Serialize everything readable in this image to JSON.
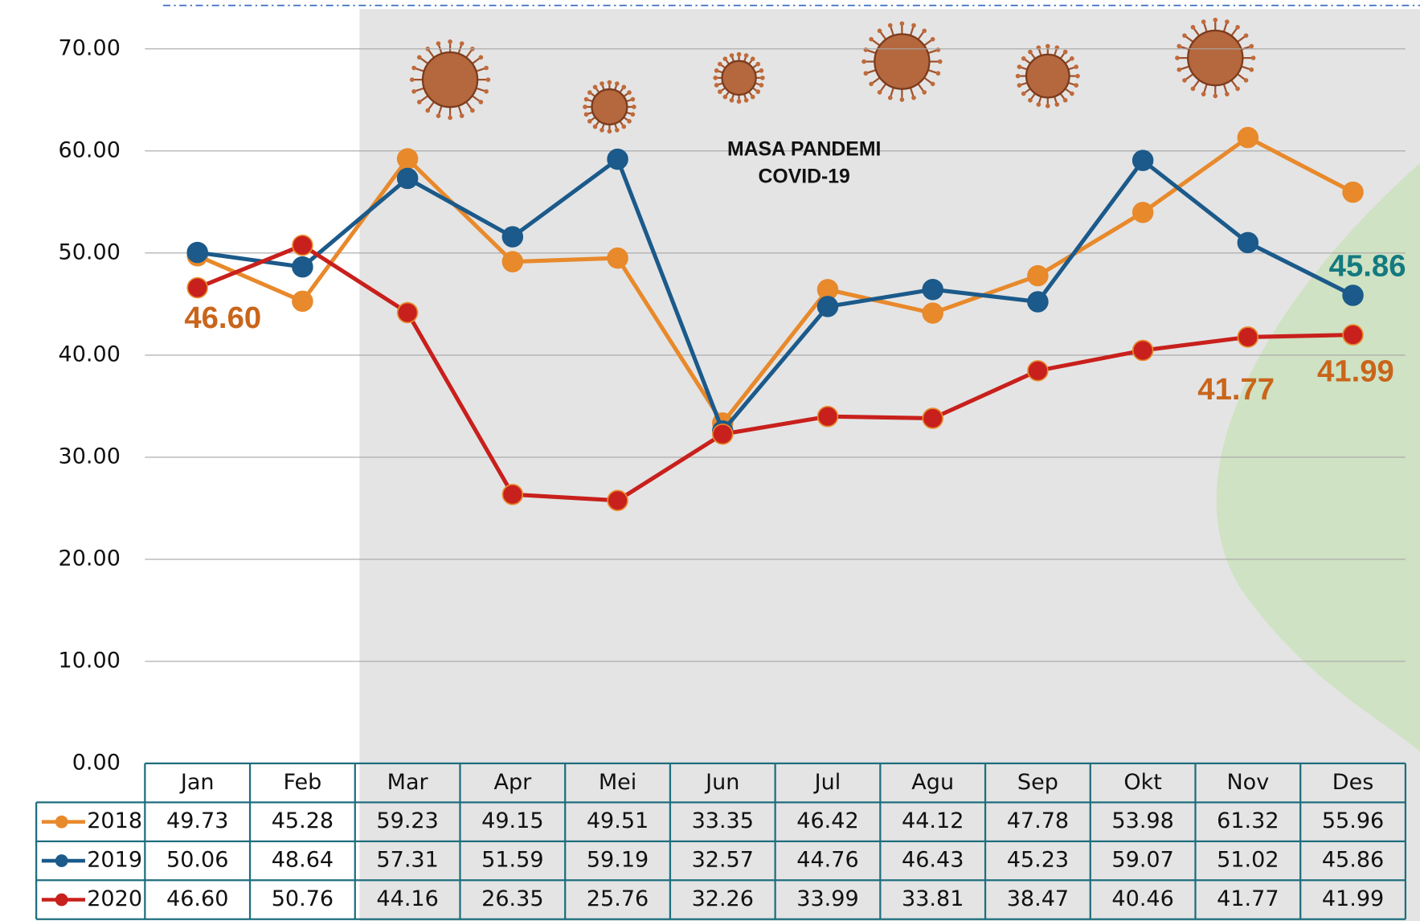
{
  "chart_data": {
    "type": "line",
    "categories": [
      "Jan",
      "Feb",
      "Mar",
      "Apr",
      "Mei",
      "Jun",
      "Jul",
      "Agu",
      "Sep",
      "Okt",
      "Nov",
      "Des"
    ],
    "series": [
      {
        "name": "2018",
        "color": "#e8892b",
        "values": [
          49.73,
          45.28,
          59.23,
          49.15,
          49.51,
          33.35,
          46.42,
          44.12,
          47.78,
          53.98,
          61.32,
          55.96
        ],
        "value_labels": [
          "49.73",
          "45.28",
          "59.23",
          "49.15",
          "49.51",
          "33.35",
          "46.42",
          "44.12",
          "47.78",
          "53.98",
          "61.32",
          "55.96"
        ]
      },
      {
        "name": "2019",
        "color": "#1b5a8a",
        "values": [
          50.06,
          48.64,
          57.31,
          51.59,
          59.19,
          32.57,
          44.76,
          46.43,
          45.23,
          59.07,
          51.02,
          45.86
        ],
        "value_labels": [
          "50.06",
          "48.64",
          "57.31",
          "51.59",
          "59.19",
          "32.57",
          "44.76",
          "46.43",
          "45.23",
          "59.07",
          "51.02",
          "45.86"
        ]
      },
      {
        "name": "2020",
        "color": "#c8201c",
        "values": [
          46.6,
          50.76,
          44.16,
          26.35,
          25.76,
          32.26,
          33.99,
          33.81,
          38.47,
          40.46,
          41.77,
          41.99
        ],
        "value_labels": [
          "46.60",
          "50.76",
          "44.16",
          "26.35",
          "25.76",
          "32.26",
          "33.99",
          "33.81",
          "38.47",
          "40.46",
          "41.77",
          "41.99"
        ]
      }
    ],
    "ylim": [
      0,
      70
    ],
    "yticks": [
      {
        "value": 0,
        "label": "0.00"
      },
      {
        "value": 10,
        "label": "10.00"
      },
      {
        "value": 20,
        "label": "20.00"
      },
      {
        "value": 30,
        "label": "30.00"
      },
      {
        "value": 40,
        "label": "40.00"
      },
      {
        "value": 50,
        "label": "50.00"
      },
      {
        "value": 60,
        "label": "60.00"
      },
      {
        "value": 70,
        "label": "70.00"
      }
    ],
    "grid": true,
    "annotation_lines": [
      "MASA PANDEMI",
      "COVID-19"
    ]
  }
}
